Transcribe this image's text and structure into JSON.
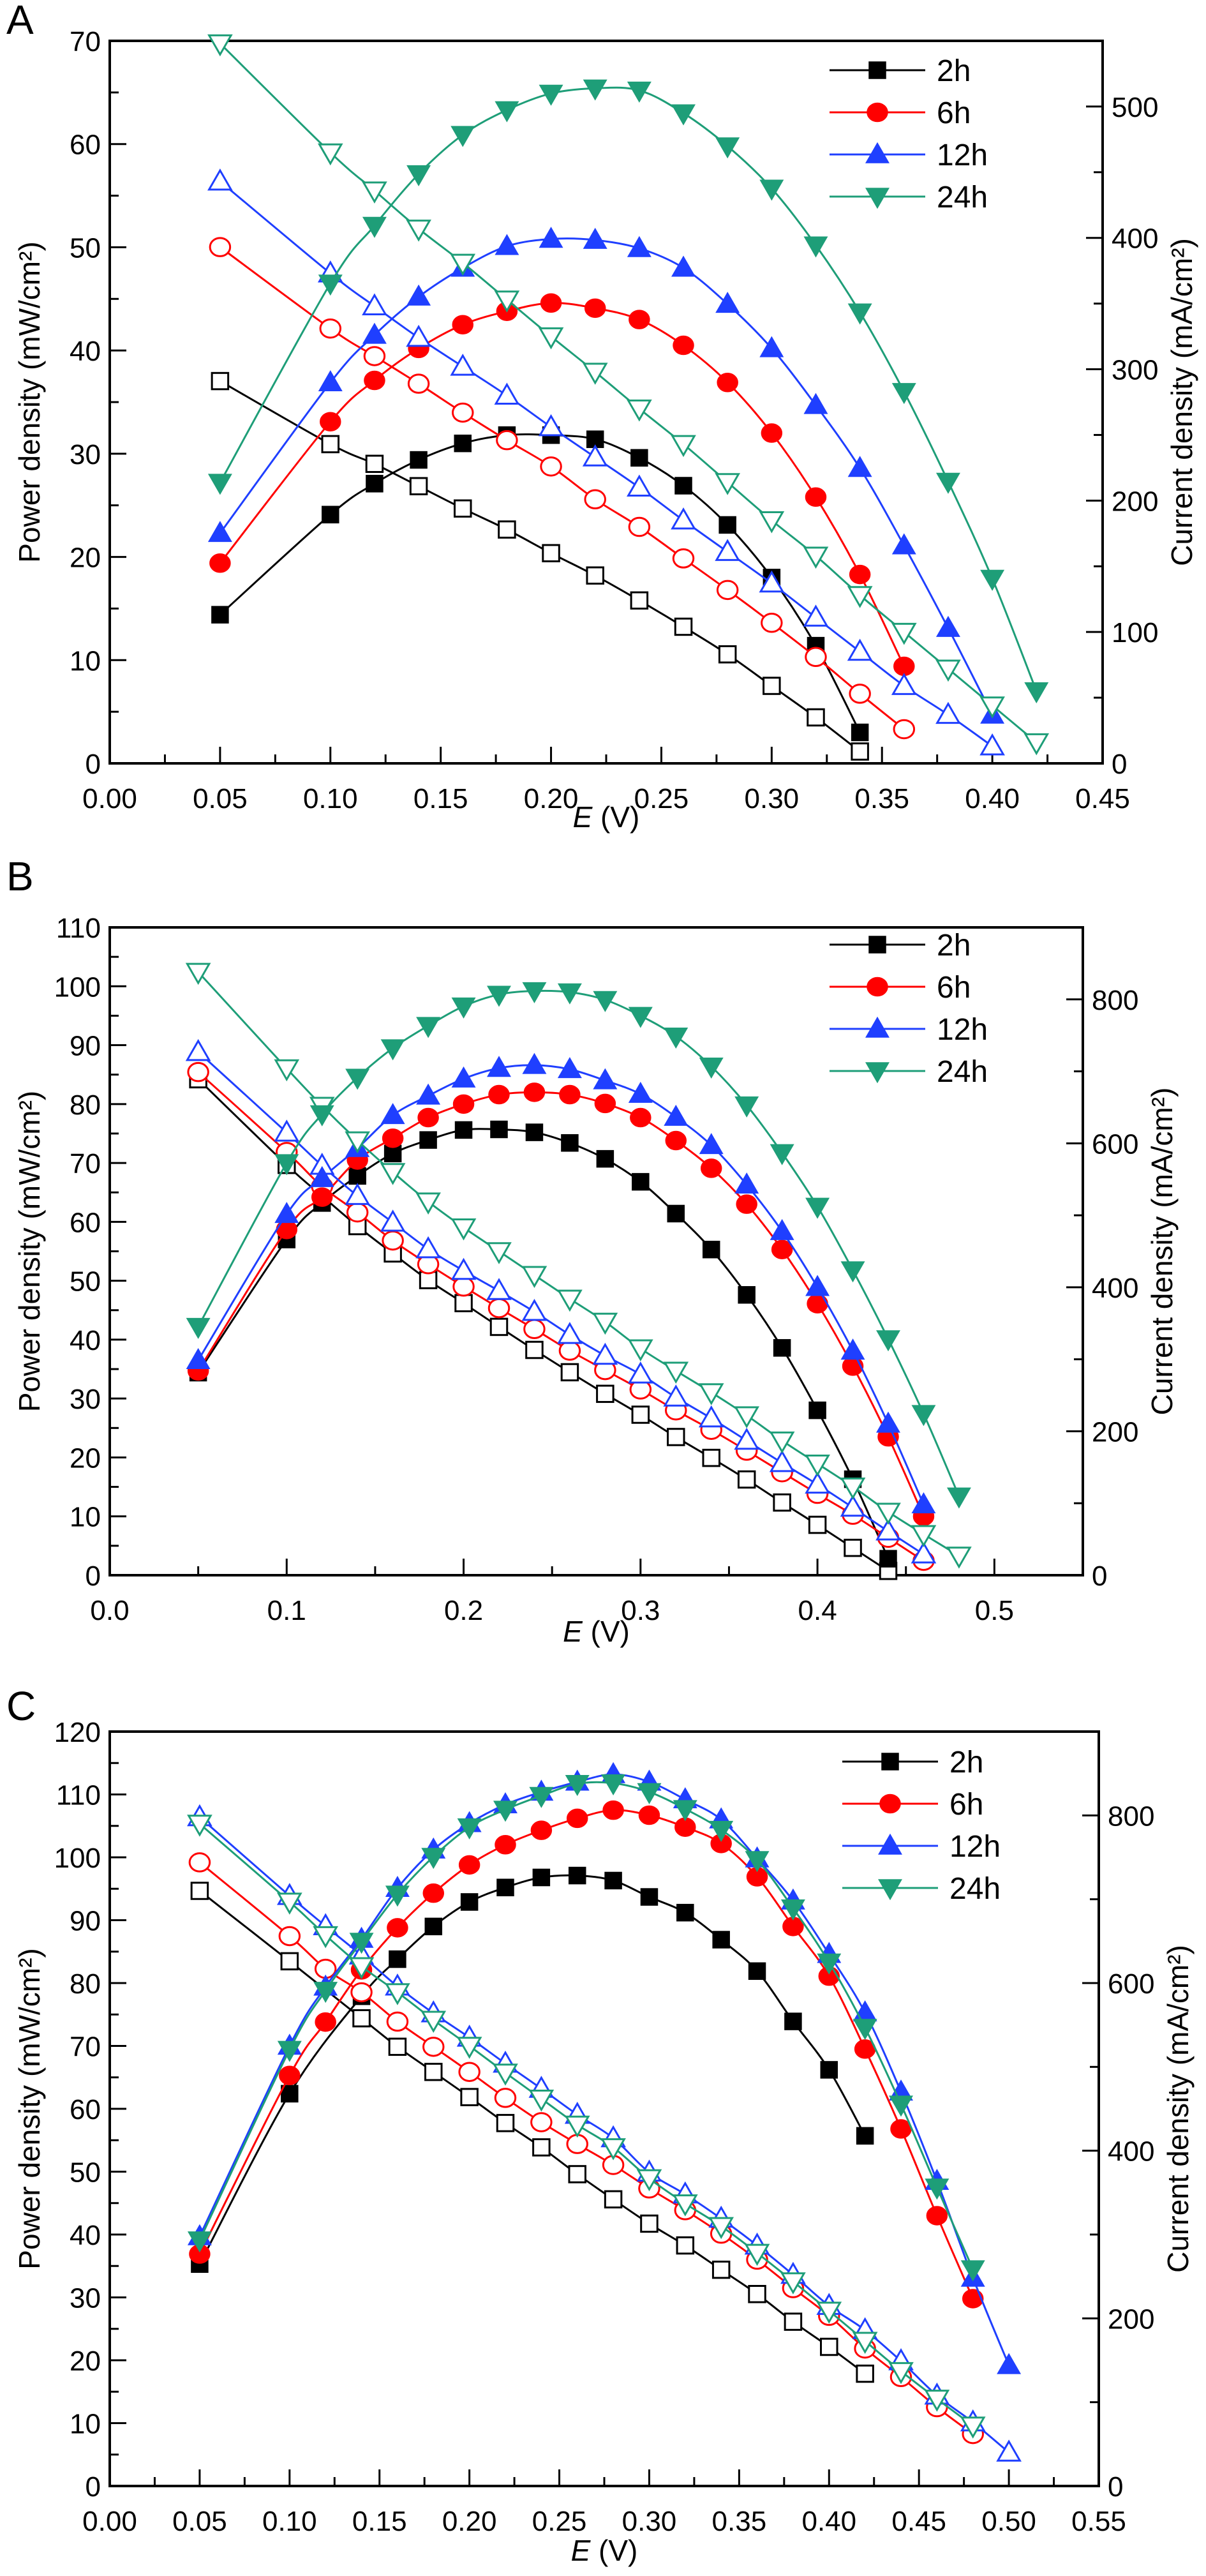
{
  "chart_data": [
    {
      "panel": "A",
      "type": "line",
      "title": "",
      "xlabel_italic": "E",
      "xlabel_unit": " (V)",
      "ylabel_left": "Power density (mW/cm²)",
      "ylabel_right": "Current density (mA/cm²)",
      "xlim": [
        0.0,
        0.45
      ],
      "ylim_left": [
        0,
        70
      ],
      "ylim_right": [
        0,
        550
      ],
      "xticks": [
        "0.00",
        "0.05",
        "0.10",
        "0.15",
        "0.20",
        "0.25",
        "0.30",
        "0.35",
        "0.40",
        "0.45"
      ],
      "xtick_values": [
        0.0,
        0.05,
        0.1,
        0.15,
        0.2,
        0.25,
        0.3,
        0.35,
        0.4,
        0.45
      ],
      "yticks_left": [
        0,
        10,
        20,
        30,
        40,
        50,
        60,
        70
      ],
      "yticks_right": [
        0,
        100,
        200,
        300,
        400,
        500
      ],
      "legend": [
        "2h",
        "6h",
        "12h",
        "24h"
      ],
      "legend_position": "top-right",
      "grid": false,
      "series": [
        {
          "name": "2h",
          "color": "#000000",
          "marker": "square",
          "x": [
            0.05,
            0.1,
            0.12,
            0.14,
            0.16,
            0.18,
            0.2,
            0.22,
            0.24,
            0.26,
            0.28,
            0.3,
            0.32,
            0.34
          ],
          "power": [
            14.4,
            24.1,
            27.1,
            29.4,
            31.0,
            31.8,
            31.8,
            31.4,
            29.6,
            26.9,
            23.1,
            18.0,
            11.4,
            3.0
          ],
          "current": [
            291,
            243,
            228,
            211,
            194,
            178,
            160,
            143,
            124,
            104,
            83,
            59,
            35,
            9
          ]
        },
        {
          "name": "6h",
          "color": "#ff0000",
          "marker": "circle",
          "x": [
            0.05,
            0.1,
            0.12,
            0.14,
            0.16,
            0.18,
            0.2,
            0.22,
            0.24,
            0.26,
            0.28,
            0.3,
            0.32,
            0.34,
            0.36
          ],
          "power": [
            19.4,
            33.1,
            37.1,
            40.2,
            42.5,
            43.8,
            44.6,
            44.1,
            43.0,
            40.5,
            36.9,
            32.0,
            25.8,
            18.3,
            9.4
          ],
          "current": [
            393,
            331,
            310,
            289,
            267,
            246,
            226,
            201,
            180,
            156,
            132,
            107,
            81,
            53,
            26
          ]
        },
        {
          "name": "12h",
          "color": "#1f3fff",
          "marker": "triangle-up",
          "x": [
            0.05,
            0.1,
            0.12,
            0.14,
            0.16,
            0.18,
            0.2,
            0.22,
            0.24,
            0.26,
            0.28,
            0.3,
            0.32,
            0.34,
            0.36,
            0.38,
            0.4
          ],
          "power": [
            22.3,
            36.9,
            41.5,
            45.2,
            48.0,
            50.1,
            50.8,
            50.7,
            49.9,
            48.0,
            44.5,
            40.2,
            34.7,
            28.6,
            21.1,
            13.1,
            4.7
          ],
          "current": [
            443,
            373,
            348,
            324,
            302,
            280,
            256,
            233,
            210,
            185,
            161,
            137,
            111,
            85,
            59,
            37,
            13
          ]
        },
        {
          "name": "24h",
          "color": "#1e9e78",
          "marker": "triangle-down",
          "x": [
            0.05,
            0.1,
            0.12,
            0.14,
            0.16,
            0.18,
            0.2,
            0.22,
            0.24,
            0.26,
            0.28,
            0.3,
            0.32,
            0.34,
            0.36,
            0.38,
            0.4,
            0.42
          ],
          "power": [
            27.2,
            46.5,
            52.1,
            57.1,
            60.9,
            63.3,
            64.9,
            65.4,
            65.2,
            63.0,
            59.8,
            55.7,
            50.2,
            43.7,
            36.0,
            27.3,
            17.9,
            7.0
          ],
          "current": [
            548,
            465,
            436,
            407,
            381,
            353,
            325,
            298,
            270,
            243,
            214,
            185,
            158,
            128,
            100,
            72,
            44,
            16
          ]
        }
      ]
    },
    {
      "panel": "B",
      "type": "line",
      "title": "",
      "xlabel_italic": "E",
      "xlabel_unit": " (V)",
      "ylabel_left": "Power density (mW/cm²)",
      "ylabel_right": "Current density (mA/cm²)",
      "xlim": [
        0.0,
        0.55
      ],
      "ylim_left": [
        0,
        110
      ],
      "ylim_right": [
        0,
        900
      ],
      "xticks": [
        "0.0",
        "0.1",
        "0.2",
        "0.3",
        "0.4",
        "0.5"
      ],
      "xtick_values": [
        0.0,
        0.1,
        0.2,
        0.3,
        0.4,
        0.5
      ],
      "yticks_left": [
        0,
        10,
        20,
        30,
        40,
        50,
        60,
        70,
        80,
        90,
        100,
        110
      ],
      "yticks_right": [
        0,
        200,
        400,
        600,
        800
      ],
      "legend": [
        "2h",
        "6h",
        "12h",
        "24h"
      ],
      "legend_position": "top-right",
      "grid": false,
      "series": [
        {
          "name": "2h",
          "color": "#000000",
          "marker": "square",
          "x": [
            0.05,
            0.1,
            0.12,
            0.14,
            0.16,
            0.18,
            0.2,
            0.22,
            0.24,
            0.26,
            0.28,
            0.3,
            0.32,
            0.34,
            0.36,
            0.38,
            0.4,
            0.42,
            0.44
          ],
          "power": [
            34.4,
            57.0,
            63.2,
            67.8,
            71.6,
            73.9,
            75.6,
            75.7,
            75.2,
            73.4,
            70.7,
            66.8,
            61.4,
            55.3,
            47.6,
            38.6,
            28.0,
            16.3,
            2.8
          ],
          "current": [
            689,
            570,
            527,
            485,
            447,
            410,
            378,
            345,
            313,
            282,
            252,
            223,
            192,
            163,
            133,
            101,
            70,
            38,
            6
          ]
        },
        {
          "name": "6h",
          "color": "#ff0000",
          "marker": "circle",
          "x": [
            0.05,
            0.1,
            0.12,
            0.14,
            0.16,
            0.18,
            0.2,
            0.22,
            0.24,
            0.26,
            0.28,
            0.3,
            0.32,
            0.34,
            0.36,
            0.38,
            0.4,
            0.42,
            0.44,
            0.46
          ],
          "power": [
            34.7,
            58.7,
            64.2,
            70.5,
            74.2,
            77.7,
            80.0,
            81.6,
            82.0,
            81.6,
            80.1,
            77.7,
            73.8,
            69.1,
            63.0,
            55.3,
            46.1,
            35.5,
            23.5,
            10.0
          ],
          "current": [
            699,
            588,
            540,
            504,
            465,
            432,
            401,
            371,
            342,
            312,
            285,
            258,
            229,
            202,
            173,
            143,
            113,
            84,
            52,
            20
          ]
        },
        {
          "name": "12h",
          "color": "#1f3fff",
          "marker": "triangle-up",
          "x": [
            0.05,
            0.1,
            0.12,
            0.14,
            0.16,
            0.18,
            0.2,
            0.22,
            0.24,
            0.26,
            0.28,
            0.3,
            0.32,
            0.34,
            0.36,
            0.38,
            0.4,
            0.42,
            0.44,
            0.46
          ],
          "power": [
            36.5,
            61.3,
            67.4,
            72.5,
            78.1,
            81.4,
            84.3,
            86.1,
            86.6,
            85.9,
            84.0,
            81.7,
            77.8,
            73.0,
            66.3,
            58.4,
            48.9,
            38.1,
            25.7,
            12.0
          ],
          "current": [
            727,
            615,
            569,
            527,
            490,
            453,
            423,
            395,
            366,
            334,
            305,
            279,
            247,
            218,
            187,
            156,
            126,
            94,
            61,
            29
          ]
        },
        {
          "name": "24h",
          "color": "#1e9e78",
          "marker": "triangle-down",
          "x": [
            0.05,
            0.1,
            0.12,
            0.14,
            0.16,
            0.18,
            0.2,
            0.22,
            0.24,
            0.26,
            0.28,
            0.3,
            0.32,
            0.34,
            0.36,
            0.38,
            0.4,
            0.42,
            0.44,
            0.46,
            0.48
          ],
          "power": [
            42.2,
            70.0,
            78.3,
            84.5,
            89.5,
            93.3,
            96.6,
            98.6,
            99.2,
            99.0,
            97.7,
            95.0,
            91.5,
            86.4,
            79.8,
            71.7,
            62.6,
            51.8,
            40.1,
            27.4,
            13.4
          ],
          "current": [
            838,
            704,
            652,
            604,
            560,
            519,
            483,
            450,
            417,
            384,
            352,
            315,
            284,
            254,
            222,
            187,
            155,
            123,
            88,
            57,
            27
          ]
        }
      ]
    },
    {
      "panel": "C",
      "type": "line",
      "title": "",
      "xlabel_italic": "E",
      "xlabel_unit": " (V)",
      "ylabel_left": "Power density (mW/cm²)",
      "ylabel_right": "Current density (mA/cm²)",
      "xlim": [
        0.0,
        0.55
      ],
      "ylim_left": [
        0,
        120
      ],
      "ylim_right": [
        0,
        900
      ],
      "xticks": [
        "0.00",
        "0.05",
        "0.10",
        "0.15",
        "0.20",
        "0.25",
        "0.30",
        "0.35",
        "0.40",
        "0.45",
        "0.50",
        "0.55"
      ],
      "xtick_values": [
        0.0,
        0.05,
        0.1,
        0.15,
        0.2,
        0.25,
        0.3,
        0.35,
        0.4,
        0.45,
        0.5,
        0.55
      ],
      "yticks_left": [
        0,
        10,
        20,
        30,
        40,
        50,
        60,
        70,
        80,
        90,
        100,
        110,
        120
      ],
      "yticks_right": [
        0,
        200,
        400,
        600,
        800
      ],
      "legend": [
        "2h",
        "6h",
        "12h",
        "24h"
      ],
      "legend_position": "top-right",
      "grid": false,
      "series": [
        {
          "name": "2h",
          "color": "#000000",
          "marker": "square",
          "x": [
            0.05,
            0.1,
            0.14,
            0.16,
            0.18,
            0.2,
            0.22,
            0.24,
            0.26,
            0.28,
            0.3,
            0.32,
            0.34,
            0.36,
            0.38,
            0.4,
            0.42
          ],
          "power": [
            35.3,
            62.4,
            77.9,
            83.8,
            89.0,
            92.9,
            95.2,
            96.8,
            97.1,
            96.3,
            93.7,
            91.2,
            86.9,
            81.9,
            73.9,
            66.2,
            55.7
          ],
          "current": [
            710,
            626,
            558,
            524,
            494,
            464,
            433,
            404,
            372,
            342,
            313,
            287,
            258,
            229,
            196,
            166,
            134
          ]
        },
        {
          "name": "6h",
          "color": "#ff0000",
          "marker": "circle",
          "x": [
            0.05,
            0.1,
            0.12,
            0.14,
            0.16,
            0.18,
            0.2,
            0.22,
            0.24,
            0.26,
            0.28,
            0.3,
            0.32,
            0.34,
            0.36,
            0.38,
            0.4,
            0.42,
            0.44,
            0.46,
            0.48
          ],
          "power": [
            36.9,
            65.3,
            73.8,
            82.1,
            88.8,
            94.3,
            98.8,
            102.0,
            104.3,
            106.2,
            107.5,
            106.7,
            104.8,
            102.2,
            96.9,
            89.0,
            81.1,
            69.5,
            56.8,
            43.0,
            29.8
          ],
          "current": [
            744,
            656,
            617,
            589,
            554,
            524,
            494,
            463,
            434,
            408,
            383,
            355,
            329,
            301,
            270,
            236,
            203,
            164,
            130,
            94,
            62
          ]
        },
        {
          "name": "12h",
          "color": "#1f3fff",
          "marker": "triangle-up",
          "x": [
            0.05,
            0.1,
            0.12,
            0.14,
            0.16,
            0.18,
            0.2,
            0.22,
            0.24,
            0.26,
            0.28,
            0.3,
            0.32,
            0.34,
            0.36,
            0.38,
            0.4,
            0.42,
            0.44,
            0.46,
            0.48,
            0.5
          ],
          "power": [
            39.7,
            70.0,
            79.4,
            87.0,
            95.1,
            101.2,
            105.4,
            108.4,
            110.4,
            112.0,
            113.2,
            112.0,
            109.2,
            106.0,
            99.8,
            93.1,
            84.6,
            75.3,
            62.7,
            48.5,
            33.1,
            19.2
          ],
          "current": [
            798,
            704,
            668,
            633,
            596,
            564,
            535,
            504,
            474,
            443,
            415,
            374,
            348,
            319,
            287,
            252,
            215,
            186,
            149,
            108,
            76,
            40
          ]
        },
        {
          "name": "24h",
          "color": "#1e9e78",
          "marker": "triangle-down",
          "x": [
            0.05,
            0.1,
            0.12,
            0.14,
            0.16,
            0.18,
            0.2,
            0.22,
            0.24,
            0.26,
            0.28,
            0.3,
            0.32,
            0.34,
            0.36,
            0.38,
            0.4,
            0.42,
            0.44,
            0.46,
            0.48
          ],
          "power": [
            39.1,
            69.4,
            78.8,
            86.6,
            94.1,
            100.1,
            104.8,
            107.6,
            109.8,
            111.7,
            111.8,
            110.4,
            107.7,
            104.4,
            99.6,
            91.9,
            83.3,
            72.9,
            60.7,
            47.5,
            34.5
          ],
          "current": [
            790,
            697,
            657,
            620,
            589,
            556,
            525,
            493,
            462,
            431,
            404,
            367,
            337,
            310,
            278,
            244,
            209,
            173,
            137,
            104,
            72
          ]
        }
      ]
    }
  ],
  "panels": [
    {
      "letter": "A"
    },
    {
      "letter": "B"
    },
    {
      "letter": "C"
    }
  ]
}
